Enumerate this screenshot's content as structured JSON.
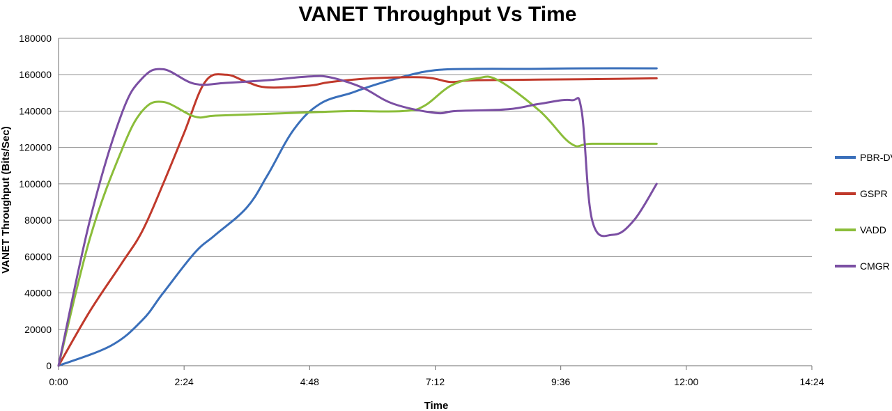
{
  "chart_data": {
    "type": "line",
    "title": "VANET Throughput Vs Time",
    "xlabel": "Time",
    "ylabel": "VANET Throughput (Bits/Sec)",
    "xlim": [
      "0:00",
      "14:24"
    ],
    "ylim": [
      0,
      180000
    ],
    "grid": "horizontal",
    "legend": "right",
    "x_ticks": [
      "0:00",
      "2:24",
      "4:48",
      "7:12",
      "9:36",
      "12:00",
      "14:24"
    ],
    "y_ticks": [
      "0",
      "20000",
      "40000",
      "60000",
      "80000",
      "100000",
      "120000",
      "140000",
      "160000",
      "180000"
    ],
    "series": [
      {
        "name": "PBR-DV",
        "color": "#3a6fba",
        "points": [
          [
            "0:00",
            0
          ],
          [
            "1:00",
            11000
          ],
          [
            "1:36",
            25000
          ],
          [
            "2:00",
            40000
          ],
          [
            "2:36",
            62000
          ],
          [
            "3:00",
            72000
          ],
          [
            "3:36",
            87000
          ],
          [
            "4:00",
            105000
          ],
          [
            "4:30",
            130000
          ],
          [
            "5:00",
            144000
          ],
          [
            "5:36",
            150000
          ],
          [
            "6:00",
            154000
          ],
          [
            "6:36",
            159000
          ],
          [
            "7:12",
            162500
          ],
          [
            "8:00",
            163200
          ],
          [
            "9:00",
            163200
          ],
          [
            "10:00",
            163500
          ],
          [
            "11:26",
            163500
          ]
        ]
      },
      {
        "name": "GSPR",
        "color": "#c0392b",
        "points": [
          [
            "0:00",
            0
          ],
          [
            "0:36",
            30000
          ],
          [
            "1:12",
            56000
          ],
          [
            "1:36",
            74000
          ],
          [
            "2:00",
            100000
          ],
          [
            "2:24",
            128000
          ],
          [
            "2:48",
            156000
          ],
          [
            "3:12",
            160000
          ],
          [
            "3:36",
            156000
          ],
          [
            "4:00",
            153000
          ],
          [
            "4:48",
            154000
          ],
          [
            "5:12",
            156000
          ],
          [
            "6:00",
            158000
          ],
          [
            "7:00",
            158500
          ],
          [
            "7:30",
            156000
          ],
          [
            "8:00",
            157000
          ],
          [
            "10:00",
            157500
          ],
          [
            "11:26",
            158000
          ]
        ]
      },
      {
        "name": "VADD",
        "color": "#8bbd3a",
        "points": [
          [
            "0:00",
            0
          ],
          [
            "0:36",
            70000
          ],
          [
            "1:12",
            118000
          ],
          [
            "1:36",
            140000
          ],
          [
            "2:00",
            145000
          ],
          [
            "2:36",
            137000
          ],
          [
            "3:00",
            137500
          ],
          [
            "4:00",
            138500
          ],
          [
            "5:00",
            139500
          ],
          [
            "5:36",
            140000
          ],
          [
            "6:36",
            140000
          ],
          [
            "7:00",
            143000
          ],
          [
            "7:30",
            154000
          ],
          [
            "8:00",
            158000
          ],
          [
            "8:24",
            157000
          ],
          [
            "9:12",
            140000
          ],
          [
            "9:48",
            122000
          ],
          [
            "10:12",
            122000
          ],
          [
            "11:26",
            122000
          ]
        ]
      },
      {
        "name": "CMGR",
        "color": "#7b4fa3",
        "points": [
          [
            "0:00",
            0
          ],
          [
            "0:36",
            80000
          ],
          [
            "1:12",
            138000
          ],
          [
            "1:36",
            158000
          ],
          [
            "2:00",
            163000
          ],
          [
            "2:36",
            155000
          ],
          [
            "3:12",
            155500
          ],
          [
            "4:00",
            157000
          ],
          [
            "4:48",
            159000
          ],
          [
            "5:12",
            158500
          ],
          [
            "5:48",
            153000
          ],
          [
            "6:24",
            144000
          ],
          [
            "7:12",
            139000
          ],
          [
            "7:36",
            140000
          ],
          [
            "8:36",
            141000
          ],
          [
            "9:12",
            144000
          ],
          [
            "9:48",
            146000
          ],
          [
            "10:00",
            140000
          ],
          [
            "10:12",
            80000
          ],
          [
            "10:36",
            72000
          ],
          [
            "11:00",
            80000
          ],
          [
            "11:26",
            100000
          ]
        ]
      }
    ]
  }
}
